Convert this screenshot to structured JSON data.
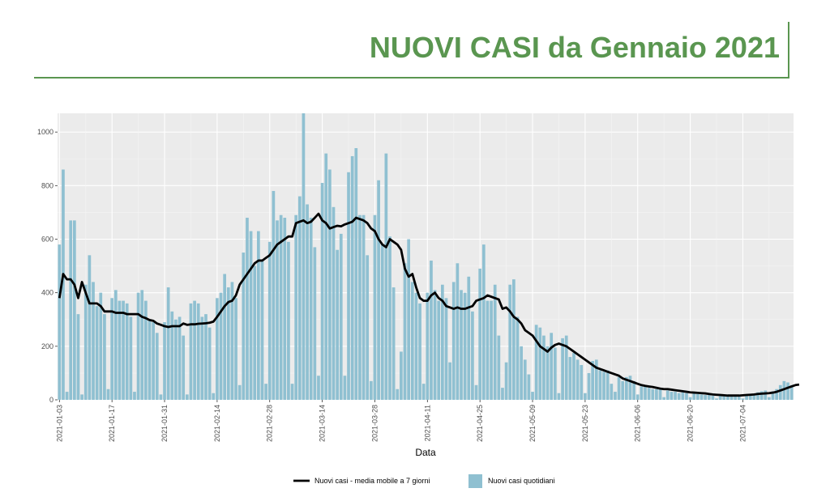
{
  "header": {
    "title": "NUOVI CASI da Gennaio 2021",
    "accent_color": "#5a9650"
  },
  "chart_data": {
    "type": "bar",
    "title": "NUOVI CASI da Gennaio 2021",
    "xlabel": "Data",
    "ylabel": "",
    "start_date": "2021-01-03",
    "ylim": [
      0,
      1070
    ],
    "yticks": [
      0,
      200,
      400,
      600,
      800,
      1000
    ],
    "xticks": [
      "2021-01-03",
      "2021-01-17",
      "2021-01-31",
      "2021-02-14",
      "2021-02-28",
      "2021-03-14",
      "2021-03-28",
      "2021-04-11",
      "2021-04-25",
      "2021-05-09",
      "2021-05-23",
      "2021-06-06",
      "2021-06-20",
      "2021-07-04"
    ],
    "grid": true,
    "legend_position": "bottom",
    "series": [
      {
        "name": "Nuovi casi quotidiani",
        "kind": "bar",
        "color": "#8fc0d1",
        "values": [
          580,
          860,
          30,
          670,
          670,
          320,
          20,
          430,
          540,
          440,
          350,
          400,
          320,
          40,
          380,
          410,
          370,
          370,
          360,
          310,
          30,
          400,
          410,
          370,
          300,
          290,
          250,
          20,
          290,
          420,
          330,
          300,
          310,
          240,
          20,
          360,
          370,
          360,
          310,
          320,
          270,
          25,
          380,
          400,
          470,
          420,
          440,
          380,
          55,
          550,
          680,
          630,
          500,
          630,
          520,
          60,
          590,
          780,
          670,
          690,
          680,
          590,
          60,
          690,
          760,
          1070,
          730,
          680,
          570,
          90,
          810,
          920,
          860,
          720,
          560,
          620,
          90,
          850,
          910,
          940,
          690,
          690,
          540,
          70,
          690,
          820,
          580,
          920,
          610,
          420,
          40,
          180,
          510,
          600,
          440,
          400,
          360,
          60,
          400,
          520,
          410,
          370,
          430,
          380,
          140,
          440,
          510,
          410,
          400,
          460,
          330,
          55,
          490,
          580,
          370,
          370,
          430,
          240,
          45,
          140,
          430,
          450,
          310,
          200,
          150,
          95,
          30,
          280,
          270,
          240,
          200,
          250,
          195,
          25,
          230,
          240,
          160,
          175,
          150,
          130,
          25,
          100,
          145,
          150,
          110,
          105,
          110,
          60,
          30,
          85,
          70,
          85,
          90,
          70,
          20,
          50,
          50,
          45,
          40,
          40,
          40,
          10,
          35,
          30,
          30,
          25,
          28,
          25,
          10,
          25,
          22,
          20,
          18,
          18,
          15,
          5,
          18,
          16,
          20,
          15,
          15,
          18,
          5,
          18,
          20,
          22,
          28,
          32,
          35,
          10,
          32,
          40,
          55,
          70,
          65,
          55
        ]
      },
      {
        "name": "Nuovi casi - media mobile a 7 giorni",
        "kind": "line",
        "color": "#000000",
        "values": [
          380,
          470,
          450,
          450,
          430,
          380,
          440,
          400,
          360,
          360,
          360,
          350,
          330,
          330,
          330,
          325,
          325,
          325,
          320,
          320,
          320,
          320,
          310,
          305,
          298,
          295,
          285,
          280,
          275,
          272,
          275,
          275,
          275,
          285,
          280,
          282,
          282,
          284,
          285,
          286,
          288,
          292,
          310,
          330,
          350,
          365,
          370,
          390,
          430,
          450,
          470,
          490,
          510,
          520,
          520,
          530,
          540,
          560,
          580,
          590,
          600,
          610,
          610,
          660,
          665,
          670,
          660,
          665,
          680,
          695,
          670,
          660,
          640,
          645,
          650,
          648,
          655,
          660,
          665,
          680,
          675,
          670,
          660,
          640,
          630,
          600,
          580,
          570,
          600,
          590,
          580,
          560,
          490,
          460,
          470,
          420,
          380,
          370,
          370,
          390,
          400,
          380,
          370,
          350,
          345,
          340,
          345,
          340,
          340,
          345,
          350,
          370,
          375,
          380,
          390,
          385,
          380,
          375,
          340,
          345,
          330,
          310,
          300,
          285,
          260,
          250,
          240,
          220,
          200,
          190,
          180,
          195,
          205,
          210,
          205,
          200,
          190,
          180,
          170,
          160,
          150,
          140,
          130,
          120,
          115,
          110,
          105,
          100,
          95,
          90,
          80,
          75,
          70,
          65,
          60,
          55,
          52,
          50,
          48,
          45,
          42,
          40,
          40,
          38,
          36,
          34,
          32,
          30,
          28,
          27,
          26,
          25,
          24,
          22,
          20,
          19,
          18,
          17,
          16,
          16,
          16,
          16,
          17,
          18,
          19,
          20,
          22,
          23,
          24,
          25,
          27,
          30,
          35,
          40,
          45,
          50,
          55,
          57
        ]
      }
    ]
  }
}
